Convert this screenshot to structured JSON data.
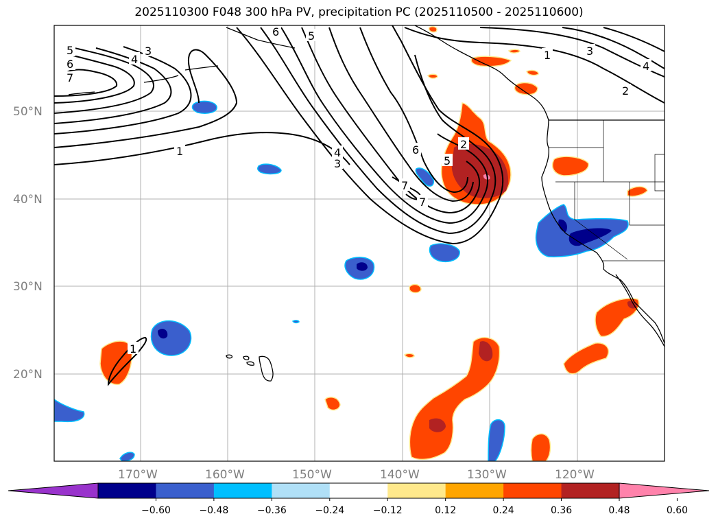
{
  "title": "2025110300 F048 300 hPa PV, precipitation PC (2025110500 - 2025110600)",
  "lat_labels": [
    "50°N",
    "40°N",
    "30°N",
    "20°N"
  ],
  "lon_labels": [
    "170°W",
    "160°W",
    "150°W",
    "140°W",
    "130°W",
    "120°W"
  ],
  "contour_labels": {
    "top_left": [
      "5",
      "6",
      "7",
      "3",
      "4"
    ],
    "top_center": [
      "6",
      "5"
    ],
    "top_right": [
      "1",
      "3",
      "4",
      "2"
    ],
    "middle_left": [
      "1"
    ],
    "center": [
      "4",
      "3",
      "6",
      "2",
      "5",
      "7",
      "7"
    ],
    "bottom_left": [
      "1"
    ]
  },
  "colorbar": {
    "ticks": [
      "−0.60",
      "−0.48",
      "−0.36",
      "−0.24",
      "−0.12",
      "0.12",
      "0.24",
      "0.36",
      "0.48",
      "0.60"
    ],
    "colors": [
      "#9933cc",
      "#00008b",
      "#3a5fcd",
      "#00bfff",
      "#b0e0f7",
      "#ffffff",
      "#ffe98c",
      "#ffa500",
      "#ff4500",
      "#b22222",
      "#ff82ab"
    ]
  },
  "colors": {
    "land_line": "#000000",
    "grid": "#b0b0b0",
    "contour": "#000000"
  }
}
